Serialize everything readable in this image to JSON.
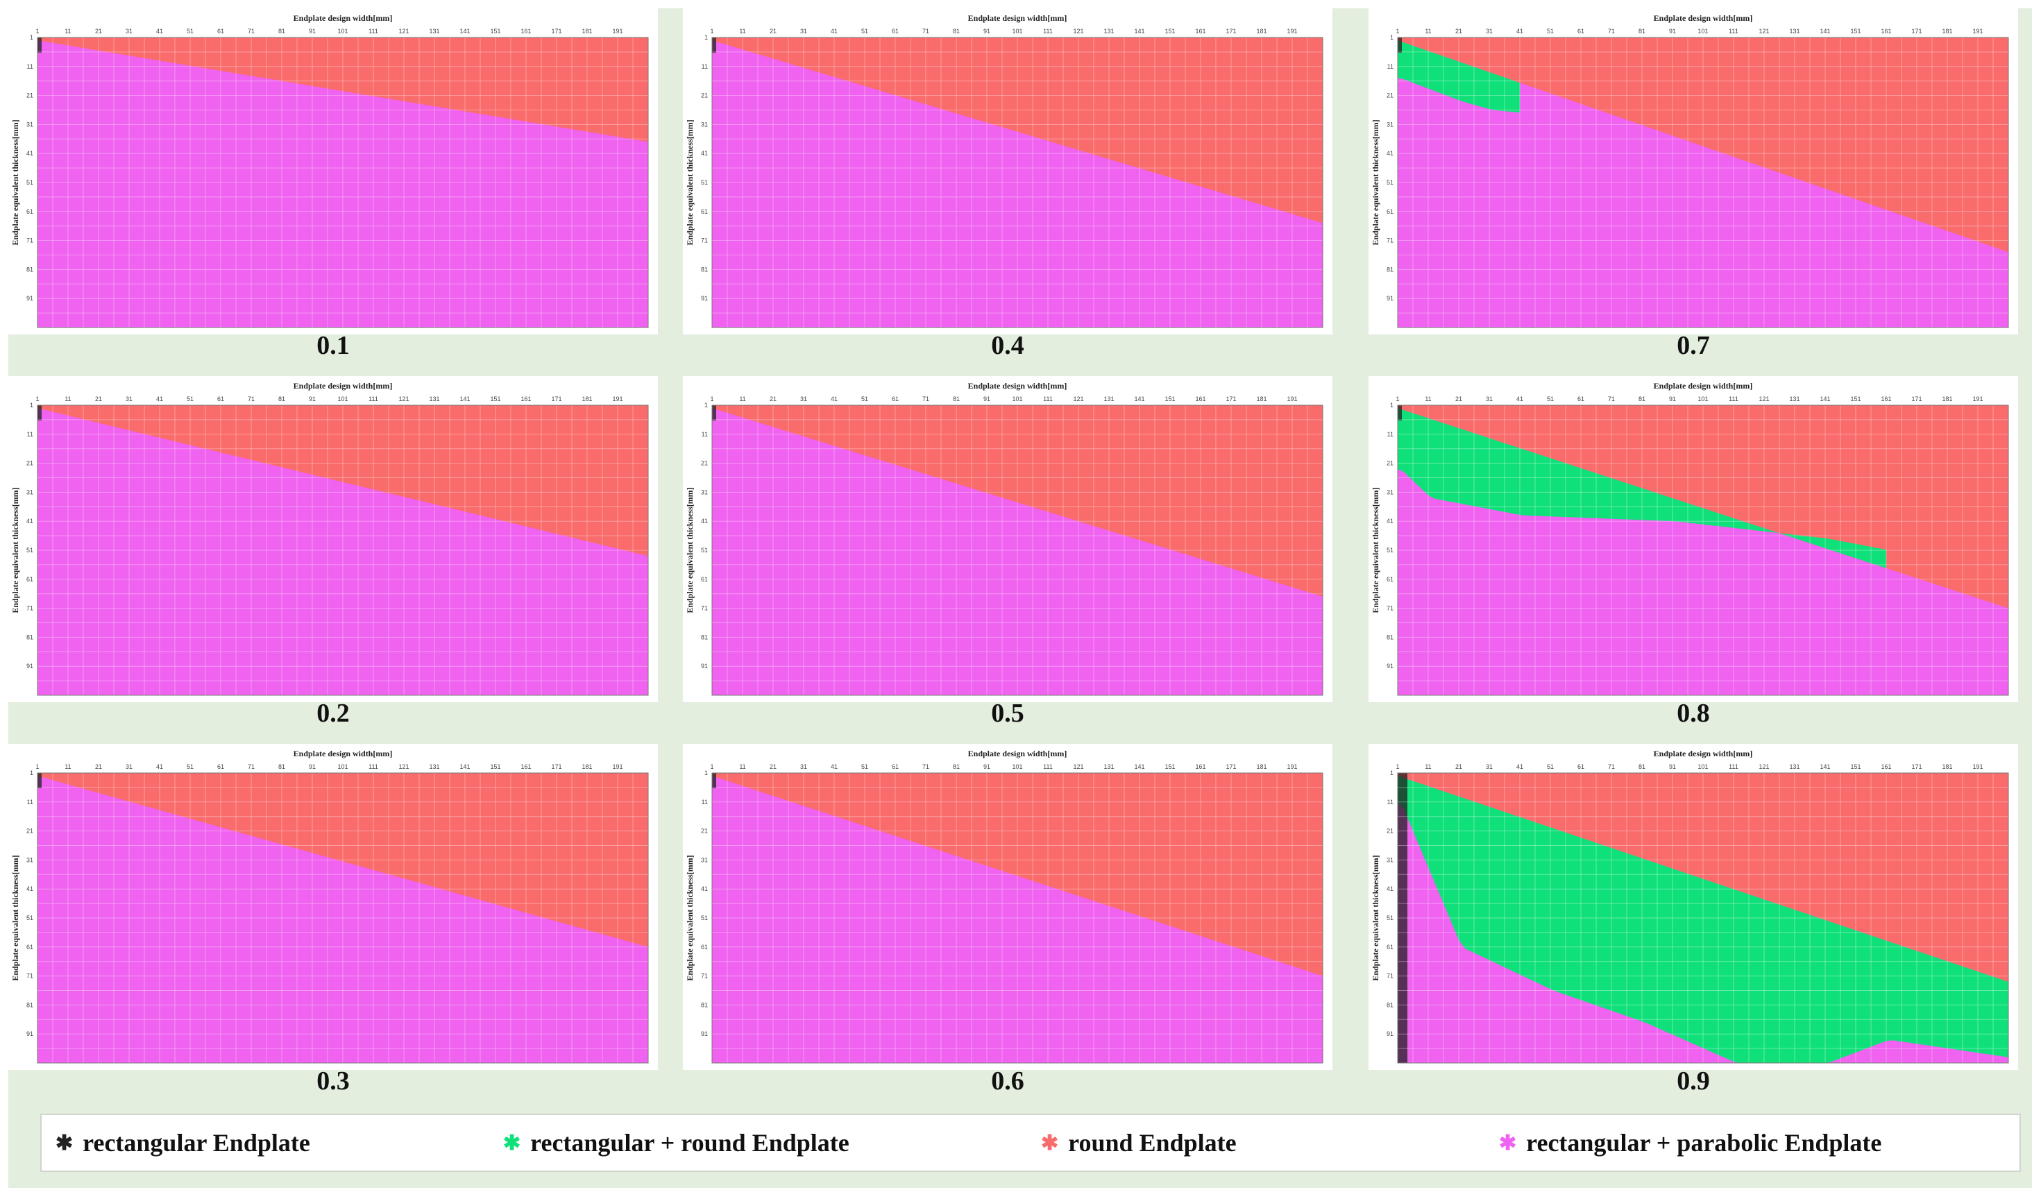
{
  "chart_data": {
    "type": "heatmap",
    "colors": {
      "rectangular": "#222222",
      "rect_round": "#10e07a",
      "round": "#fa6b6b",
      "rect_parabolic": "#f062f0",
      "background": "#e3eedf"
    },
    "legend": [
      {
        "key": "rectangular",
        "label": "rectangular Endplate",
        "color": "#222222"
      },
      {
        "key": "rect_round",
        "label": "rectangular + round Endplate",
        "color": "#10e07a"
      },
      {
        "key": "round",
        "label": "round Endplate",
        "color": "#fa6b6b"
      },
      {
        "key": "rect_parabolic",
        "label": "rectangular + parabolic Endplate",
        "color": "#f062f0"
      }
    ],
    "legend_position": "bottom",
    "xlabel": "Endplate design width[mm]",
    "ylabel": "Endplate equivalent thickness[mm]",
    "x_ticks": [
      "1",
      "11",
      "21",
      "31",
      "41",
      "51",
      "61",
      "71",
      "81",
      "91",
      "101",
      "111",
      "121",
      "131",
      "141",
      "151",
      "161",
      "171",
      "181",
      "191"
    ],
    "y_ticks": [
      "1",
      "11",
      "21",
      "31",
      "41",
      "51",
      "61",
      "71",
      "81",
      "91"
    ],
    "grid": true,
    "panels": [
      {
        "label": "0.1",
        "round_boundary_y": [
          1,
          36
        ]
      },
      {
        "label": "0.2",
        "round_boundary_y": [
          1,
          52
        ]
      },
      {
        "label": "0.3",
        "round_boundary_y": [
          1,
          60
        ]
      },
      {
        "label": "0.4",
        "round_boundary_y": [
          1,
          64
        ]
      },
      {
        "label": "0.5",
        "round_boundary_y": [
          1,
          66
        ]
      },
      {
        "label": "0.6",
        "round_boundary_y": [
          1,
          70
        ]
      },
      {
        "label": "0.7",
        "round_boundary_y": [
          1,
          74
        ],
        "green_lower": [
          [
            1,
            14
          ],
          [
            21,
            22
          ],
          [
            31,
            25
          ],
          [
            41,
            26
          ]
        ]
      },
      {
        "label": "0.8",
        "round_boundary_y": [
          1,
          70
        ],
        "green_lower": [
          [
            1,
            22
          ],
          [
            11,
            32
          ],
          [
            41,
            38
          ],
          [
            91,
            40
          ],
          [
            141,
            46
          ],
          [
            161,
            50
          ]
        ]
      },
      {
        "label": "0.9",
        "round_boundary_y": [
          1,
          72
        ],
        "green_lower": [
          [
            1,
            10
          ],
          [
            21,
            60
          ],
          [
            51,
            75
          ],
          [
            81,
            86
          ],
          [
            111,
            100
          ],
          [
            141,
            100
          ],
          [
            161,
            92
          ],
          [
            200,
            98
          ]
        ]
      }
    ]
  }
}
